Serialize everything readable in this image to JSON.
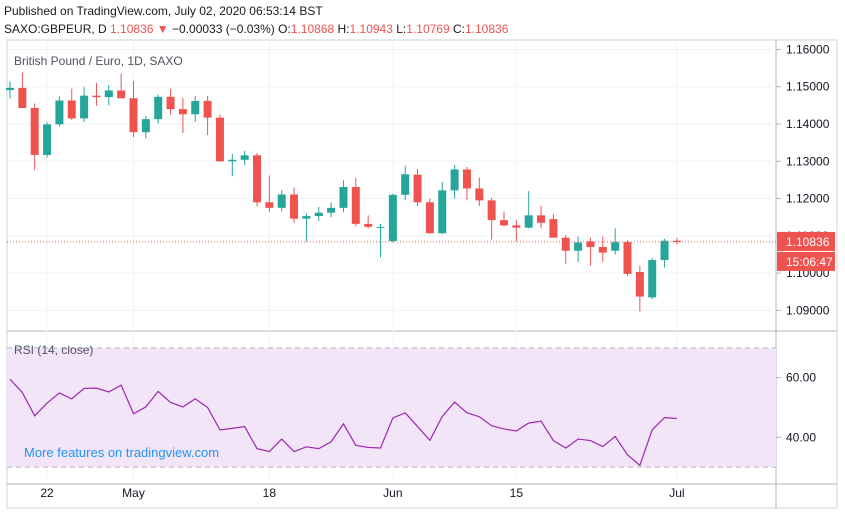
{
  "header": {
    "published": "Published on TradingView.com, July 02, 2020 06:53:14 BST",
    "symbol": "SAXO:GBPEUR, D",
    "last": "1.10836",
    "change_arrow": "▼",
    "change": "−0.00033 (−0.03%)",
    "open_label": "O:",
    "open": "1.10868",
    "high_label": "H:",
    "high": "1.10943",
    "low_label": "L:",
    "low": "1.10769",
    "close_label": "C:",
    "close": "1.10836"
  },
  "chart_data": [
    {
      "type": "candlestick",
      "title": "British Pound / Euro, 1D, SAXO",
      "ylim": [
        1.085,
        1.162
      ],
      "y_ticks": [
        "1.09000",
        "1.10000",
        "1.11000",
        "1.12000",
        "1.13000",
        "1.14000",
        "1.15000",
        "1.16000"
      ],
      "y_tick_values": [
        1.09,
        1.1,
        1.11,
        1.12,
        1.13,
        1.14,
        1.15,
        1.16
      ],
      "x_labels": [
        {
          "label": "22",
          "index": 3
        },
        {
          "label": "May",
          "index": 10
        },
        {
          "label": "18",
          "index": 21
        },
        {
          "label": "Jun",
          "index": 31
        },
        {
          "label": "15",
          "index": 41
        },
        {
          "label": "Jul",
          "index": 54
        }
      ],
      "last_price_label": "1.10836",
      "countdown_label": "15:06:47",
      "up_color": "#26a69a",
      "down_color": "#ef5350",
      "candles": [
        {
          "o": 1.1491,
          "h": 1.1515,
          "l": 1.1468,
          "c": 1.1497
        },
        {
          "o": 1.1497,
          "h": 1.1538,
          "l": 1.1447,
          "c": 1.1443
        },
        {
          "o": 1.1443,
          "h": 1.1455,
          "l": 1.1276,
          "c": 1.1317
        },
        {
          "o": 1.1317,
          "h": 1.1405,
          "l": 1.131,
          "c": 1.1399
        },
        {
          "o": 1.1399,
          "h": 1.1474,
          "l": 1.1393,
          "c": 1.1463
        },
        {
          "o": 1.1463,
          "h": 1.1495,
          "l": 1.1411,
          "c": 1.1415
        },
        {
          "o": 1.1415,
          "h": 1.1499,
          "l": 1.1405,
          "c": 1.1476
        },
        {
          "o": 1.1476,
          "h": 1.151,
          "l": 1.1449,
          "c": 1.1472
        },
        {
          "o": 1.1472,
          "h": 1.1505,
          "l": 1.145,
          "c": 1.149
        },
        {
          "o": 1.149,
          "h": 1.1535,
          "l": 1.147,
          "c": 1.1469
        },
        {
          "o": 1.1469,
          "h": 1.1515,
          "l": 1.1365,
          "c": 1.1378
        },
        {
          "o": 1.1378,
          "h": 1.1422,
          "l": 1.1361,
          "c": 1.1413
        },
        {
          "o": 1.1413,
          "h": 1.1479,
          "l": 1.1401,
          "c": 1.1473
        },
        {
          "o": 1.1473,
          "h": 1.1494,
          "l": 1.1425,
          "c": 1.144
        },
        {
          "o": 1.144,
          "h": 1.147,
          "l": 1.1376,
          "c": 1.1426
        },
        {
          "o": 1.1426,
          "h": 1.1475,
          "l": 1.1406,
          "c": 1.1462
        },
        {
          "o": 1.1462,
          "h": 1.1475,
          "l": 1.137,
          "c": 1.1417
        },
        {
          "o": 1.1417,
          "h": 1.1425,
          "l": 1.1298,
          "c": 1.13
        },
        {
          "o": 1.13,
          "h": 1.132,
          "l": 1.126,
          "c": 1.1304
        },
        {
          "o": 1.1304,
          "h": 1.1328,
          "l": 1.129,
          "c": 1.1316
        },
        {
          "o": 1.1316,
          "h": 1.1322,
          "l": 1.1179,
          "c": 1.119
        },
        {
          "o": 1.119,
          "h": 1.1262,
          "l": 1.1165,
          "c": 1.1175
        },
        {
          "o": 1.1175,
          "h": 1.1222,
          "l": 1.1165,
          "c": 1.1211
        },
        {
          "o": 1.1211,
          "h": 1.123,
          "l": 1.1134,
          "c": 1.1146
        },
        {
          "o": 1.1146,
          "h": 1.116,
          "l": 1.1084,
          "c": 1.1153
        },
        {
          "o": 1.1153,
          "h": 1.1178,
          "l": 1.114,
          "c": 1.1162
        },
        {
          "o": 1.1162,
          "h": 1.119,
          "l": 1.115,
          "c": 1.1175
        },
        {
          "o": 1.1175,
          "h": 1.1249,
          "l": 1.1163,
          "c": 1.1231
        },
        {
          "o": 1.1231,
          "h": 1.1255,
          "l": 1.1125,
          "c": 1.1132
        },
        {
          "o": 1.1132,
          "h": 1.1155,
          "l": 1.112,
          "c": 1.1124
        },
        {
          "o": 1.1124,
          "h": 1.1132,
          "l": 1.1042,
          "c": 1.1124
        },
        {
          "o": 1.1086,
          "h": 1.1213,
          "l": 1.1082,
          "c": 1.121
        },
        {
          "o": 1.121,
          "h": 1.1288,
          "l": 1.1196,
          "c": 1.1265
        },
        {
          "o": 1.1264,
          "h": 1.1279,
          "l": 1.118,
          "c": 1.119
        },
        {
          "o": 1.119,
          "h": 1.12,
          "l": 1.1105,
          "c": 1.1107
        },
        {
          "o": 1.1107,
          "h": 1.1245,
          "l": 1.1105,
          "c": 1.1222
        },
        {
          "o": 1.1222,
          "h": 1.129,
          "l": 1.12,
          "c": 1.1278
        },
        {
          "o": 1.1278,
          "h": 1.1285,
          "l": 1.1195,
          "c": 1.1227
        },
        {
          "o": 1.1227,
          "h": 1.1256,
          "l": 1.118,
          "c": 1.1195
        },
        {
          "o": 1.1195,
          "h": 1.1202,
          "l": 1.109,
          "c": 1.1142
        },
        {
          "o": 1.1142,
          "h": 1.1165,
          "l": 1.1125,
          "c": 1.1128
        },
        {
          "o": 1.1128,
          "h": 1.1142,
          "l": 1.1085,
          "c": 1.1122
        },
        {
          "o": 1.1122,
          "h": 1.122,
          "l": 1.112,
          "c": 1.1155
        },
        {
          "o": 1.1155,
          "h": 1.118,
          "l": 1.112,
          "c": 1.1135
        },
        {
          "o": 1.1145,
          "h": 1.1158,
          "l": 1.1102,
          "c": 1.1095
        },
        {
          "o": 1.1095,
          "h": 1.1102,
          "l": 1.1024,
          "c": 1.106
        },
        {
          "o": 1.106,
          "h": 1.1098,
          "l": 1.103,
          "c": 1.1082
        },
        {
          "o": 1.1085,
          "h": 1.1095,
          "l": 1.102,
          "c": 1.107
        },
        {
          "o": 1.107,
          "h": 1.1098,
          "l": 1.103,
          "c": 1.1055
        },
        {
          "o": 1.106,
          "h": 1.112,
          "l": 1.105,
          "c": 1.1083
        },
        {
          "o": 1.1083,
          "h": 1.1088,
          "l": 1.0992,
          "c": 1.0998
        },
        {
          "o": 1.1003,
          "h": 1.102,
          "l": 1.0897,
          "c": 1.0937
        },
        {
          "o": 1.0935,
          "h": 1.104,
          "l": 1.093,
          "c": 1.1035
        },
        {
          "o": 1.1035,
          "h": 1.1092,
          "l": 1.1015,
          "c": 1.1087
        },
        {
          "o": 1.10868,
          "h": 1.10943,
          "l": 1.10769,
          "c": 1.10836
        }
      ]
    },
    {
      "type": "line",
      "title": "RSI (14, close)",
      "ylim": [
        25,
        75
      ],
      "y_ticks": [
        "40.00",
        "60.00"
      ],
      "y_tick_values": [
        40,
        60
      ],
      "band_upper": 70,
      "band_lower": 30,
      "line_color": "#9c27b0",
      "values": [
        59.5,
        55.0,
        47.2,
        51.5,
        54.9,
        52.9,
        56.4,
        56.5,
        55.2,
        57.5,
        47.9,
        50.2,
        55.4,
        51.7,
        50.2,
        52.9,
        50.0,
        42.5,
        43.0,
        43.6,
        36.2,
        35.2,
        39.4,
        35.2,
        36.8,
        36.2,
        38.5,
        44.5,
        37.3,
        36.6,
        36.4,
        46.5,
        48.2,
        43.6,
        39.0,
        47.0,
        51.8,
        48.2,
        46.9,
        43.9,
        42.8,
        42.1,
        44.8,
        45.4,
        38.9,
        36.4,
        39.4,
        38.9,
        36.9,
        40.3,
        34.1,
        30.6,
        42.5,
        46.6,
        46.3
      ]
    }
  ],
  "watermark": "More features on tradingview.com"
}
